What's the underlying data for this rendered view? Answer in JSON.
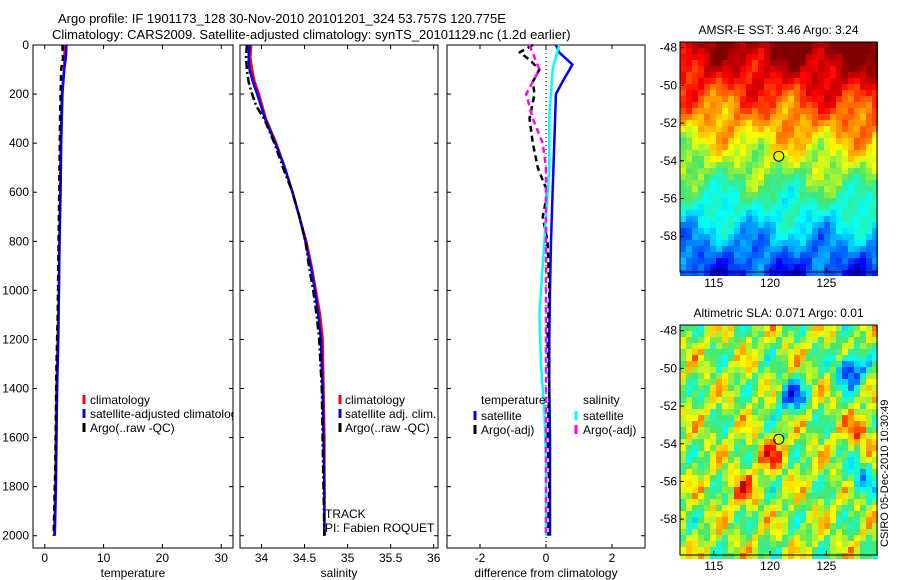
{
  "title": {
    "line1": "Argo profile: IF 1901173_128 30-Nov-2010 20101201_324 53.757S 120.775E",
    "line2": "Climatology: CARS2009. Satellite-adjusted climatology: synTS_20101129.nc (1.2d earlier)"
  },
  "side_label": "CSIRO 05-Dec-2010 10:30:49",
  "colors": {
    "climatology": "#ff0000",
    "satellite": "#0000ff",
    "argo": "#000000",
    "satellite_salinity": "#00ffff",
    "argo_salinity_adj": "#ff00ff"
  },
  "chart_data": [
    {
      "type": "line",
      "id": "temperature",
      "xlabel": "temperature",
      "ylabel": "",
      "xlim": [
        -2,
        32
      ],
      "ylim": [
        0,
        2050
      ],
      "y_reversed": true,
      "xticks": [
        0,
        10,
        20,
        30
      ],
      "yticks": [
        0,
        200,
        400,
        600,
        800,
        1000,
        1200,
        1400,
        1600,
        1800,
        2000
      ],
      "legend": [
        "climatology",
        "satellite-adjusted climatology",
        "Argo(..raw -QC)"
      ],
      "series": [
        {
          "name": "climatology",
          "color": "#ff0000",
          "style": "solid",
          "points": [
            [
              3.4,
              0
            ],
            [
              3.3,
              100
            ],
            [
              2.9,
              200
            ],
            [
              2.7,
              400
            ],
            [
              2.6,
              600
            ],
            [
              2.5,
              800
            ],
            [
              2.4,
              1000
            ],
            [
              2.2,
              1200
            ],
            [
              2.0,
              1400
            ],
            [
              1.9,
              1600
            ],
            [
              1.8,
              1800
            ],
            [
              1.6,
              2000
            ]
          ]
        },
        {
          "name": "satellite-adjusted climatology",
          "color": "#0000ff",
          "style": "solid",
          "points": [
            [
              3.7,
              0
            ],
            [
              3.6,
              50
            ],
            [
              3.3,
              100
            ],
            [
              3.0,
              200
            ],
            [
              2.8,
              400
            ],
            [
              2.7,
              600
            ],
            [
              2.5,
              800
            ],
            [
              2.4,
              1000
            ],
            [
              2.3,
              1200
            ],
            [
              2.1,
              1400
            ],
            [
              2.0,
              1600
            ],
            [
              1.9,
              1800
            ],
            [
              1.7,
              2000
            ]
          ]
        },
        {
          "name": "Argo(..raw -QC)",
          "color": "#000000",
          "style": "dashed",
          "points": [
            [
              3.0,
              0
            ],
            [
              3.1,
              50
            ],
            [
              2.8,
              100
            ],
            [
              2.7,
              200
            ],
            [
              2.6,
              300
            ],
            [
              2.5,
              500
            ],
            [
              2.4,
              700
            ],
            [
              2.3,
              900
            ],
            [
              2.2,
              1100
            ],
            [
              2.0,
              1300
            ],
            [
              1.9,
              1500
            ],
            [
              1.8,
              1700
            ],
            [
              1.6,
              1900
            ],
            [
              1.5,
              2000
            ]
          ]
        }
      ]
    },
    {
      "type": "line",
      "id": "salinity",
      "xlabel": "salinity",
      "ylabel": "",
      "xlim": [
        33.75,
        36.05
      ],
      "ylim": [
        0,
        2050
      ],
      "y_reversed": true,
      "xticks": [
        34,
        34.5,
        35,
        35.5,
        36
      ],
      "xtick_labels": [
        "34",
        "34.5",
        "35",
        "35.5",
        "36"
      ],
      "legend": [
        "climatology",
        "satellite adj. clim.",
        "Argo(..raw -QC)"
      ],
      "annotation": [
        "TRACK",
        "PI: Fabien ROQUET"
      ],
      "series": [
        {
          "name": "climatology",
          "color": "#ff0000",
          "style": "solid",
          "points": [
            [
              33.88,
              0
            ],
            [
              33.87,
              50
            ],
            [
              33.89,
              100
            ],
            [
              33.92,
              150
            ],
            [
              33.97,
              200
            ],
            [
              34.05,
              300
            ],
            [
              34.17,
              400
            ],
            [
              34.27,
              500
            ],
            [
              34.36,
              600
            ],
            [
              34.44,
              700
            ],
            [
              34.52,
              800
            ],
            [
              34.58,
              900
            ],
            [
              34.63,
              1000
            ],
            [
              34.68,
              1100
            ],
            [
              34.71,
              1200
            ],
            [
              34.72,
              1400
            ],
            [
              34.73,
              1600
            ],
            [
              34.73,
              1800
            ],
            [
              34.73,
              2000
            ]
          ]
        },
        {
          "name": "satellite adj. clim.",
          "color": "#0000ff",
          "style": "solid",
          "points": [
            [
              33.86,
              0
            ],
            [
              33.85,
              50
            ],
            [
              33.86,
              100
            ],
            [
              33.9,
              150
            ],
            [
              33.95,
              200
            ],
            [
              34.04,
              300
            ],
            [
              34.16,
              400
            ],
            [
              34.27,
              500
            ],
            [
              34.36,
              600
            ],
            [
              34.44,
              700
            ],
            [
              34.51,
              800
            ],
            [
              34.57,
              900
            ],
            [
              34.62,
              1000
            ],
            [
              34.66,
              1100
            ],
            [
              34.69,
              1200
            ],
            [
              34.71,
              1400
            ],
            [
              34.72,
              1600
            ],
            [
              34.73,
              1800
            ],
            [
              34.73,
              2000
            ]
          ]
        },
        {
          "name": "Argo(..raw -QC)",
          "color": "#000000",
          "style": "dashdot",
          "points": [
            [
              33.83,
              0
            ],
            [
              33.82,
              50
            ],
            [
              33.83,
              100
            ],
            [
              33.85,
              150
            ],
            [
              33.89,
              200
            ],
            [
              33.94,
              250
            ],
            [
              34.03,
              300
            ],
            [
              34.15,
              400
            ],
            [
              34.25,
              500
            ],
            [
              34.36,
              600
            ],
            [
              34.44,
              700
            ],
            [
              34.51,
              800
            ],
            [
              34.55,
              900
            ],
            [
              34.6,
              1000
            ],
            [
              34.64,
              1100
            ],
            [
              34.67,
              1200
            ],
            [
              34.7,
              1400
            ],
            [
              34.71,
              1600
            ],
            [
              34.72,
              1800
            ],
            [
              34.73,
              2000
            ]
          ]
        }
      ]
    },
    {
      "type": "line",
      "id": "difference",
      "xlabel": "difference from climatology",
      "ylabel": "",
      "xlim": [
        -3,
        3
      ],
      "ylim": [
        0,
        2050
      ],
      "y_reversed": true,
      "xticks": [
        -2,
        0,
        2
      ],
      "legend_title_left": "temperature",
      "legend_title_right": "salinity",
      "legend_left": [
        "satellite",
        "Argo(-adj)"
      ],
      "legend_right": [
        "satellite",
        "Argo(-adj)"
      ],
      "series": [
        {
          "name": "temperature satellite",
          "color": "#0000ff",
          "style": "solid",
          "points": [
            [
              0.3,
              0
            ],
            [
              0.4,
              30
            ],
            [
              0.8,
              80
            ],
            [
              0.5,
              150
            ],
            [
              0.3,
              200
            ],
            [
              0.25,
              400
            ],
            [
              0.2,
              600
            ],
            [
              0.15,
              800
            ],
            [
              0.12,
              1000
            ],
            [
              0.1,
              1200
            ],
            [
              0.1,
              1400
            ],
            [
              0.12,
              1600
            ],
            [
              0.12,
              1800
            ],
            [
              0.12,
              2000
            ]
          ]
        },
        {
          "name": "temperature Argo(-adj)",
          "color": "#000000",
          "style": "dashed",
          "points": [
            [
              -0.4,
              0
            ],
            [
              -0.8,
              30
            ],
            [
              -0.5,
              60
            ],
            [
              -0.2,
              100
            ],
            [
              -0.4,
              150
            ],
            [
              -0.35,
              200
            ],
            [
              -0.5,
              300
            ],
            [
              -0.4,
              400
            ],
            [
              -0.25,
              500
            ],
            [
              0.05,
              600
            ],
            [
              -0.1,
              700
            ],
            [
              0.05,
              800
            ],
            [
              0.1,
              1000
            ],
            [
              0.05,
              1200
            ],
            [
              0.1,
              1400
            ],
            [
              0.05,
              1600
            ],
            [
              0.1,
              1800
            ],
            [
              0.05,
              2000
            ]
          ]
        },
        {
          "name": "salinity satellite",
          "color": "#00ffff",
          "style": "solid",
          "points": [
            [
              0.4,
              0
            ],
            [
              0.2,
              100
            ],
            [
              0.1,
              300
            ],
            [
              0.1,
              500
            ],
            [
              0.0,
              700
            ],
            [
              -0.1,
              900
            ],
            [
              -0.2,
              1100
            ],
            [
              -0.15,
              1300
            ],
            [
              -0.05,
              1500
            ],
            [
              0.0,
              1700
            ],
            [
              0.0,
              1900
            ],
            [
              0.0,
              2000
            ]
          ]
        },
        {
          "name": "salinity Argo(-adj)",
          "color": "#ff00ff",
          "style": "dashed",
          "points": [
            [
              -0.5,
              0
            ],
            [
              -0.2,
              100
            ],
            [
              -0.6,
              200
            ],
            [
              -0.4,
              300
            ],
            [
              -0.1,
              400
            ],
            [
              0.0,
              500
            ],
            [
              0.0,
              700
            ],
            [
              0.0,
              1000
            ],
            [
              0.0,
              1500
            ],
            [
              0.0,
              2000
            ]
          ]
        }
      ]
    },
    {
      "type": "heatmap",
      "id": "sst_map",
      "title": "AMSR-E SST: 3.46  Argo: 3.24",
      "xlim": [
        112,
        129.5
      ],
      "ylim": [
        -59.9,
        -47.7
      ],
      "xticks": [
        115,
        120,
        125
      ],
      "yticks": [
        -48,
        -50,
        -52,
        -54,
        -56,
        -58
      ],
      "marker": {
        "lon": 120.775,
        "lat": -53.757
      }
    },
    {
      "type": "heatmap",
      "id": "sla_map",
      "title": "Altimetric SLA: 0.071  Argo: 0.01",
      "xlim": [
        112,
        129.5
      ],
      "ylim": [
        -59.9,
        -47.7
      ],
      "xticks": [
        115,
        120,
        125
      ],
      "yticks": [
        -48,
        -50,
        -52,
        -54,
        -56,
        -58
      ],
      "marker": {
        "lon": 120.775,
        "lat": -53.757
      }
    }
  ]
}
